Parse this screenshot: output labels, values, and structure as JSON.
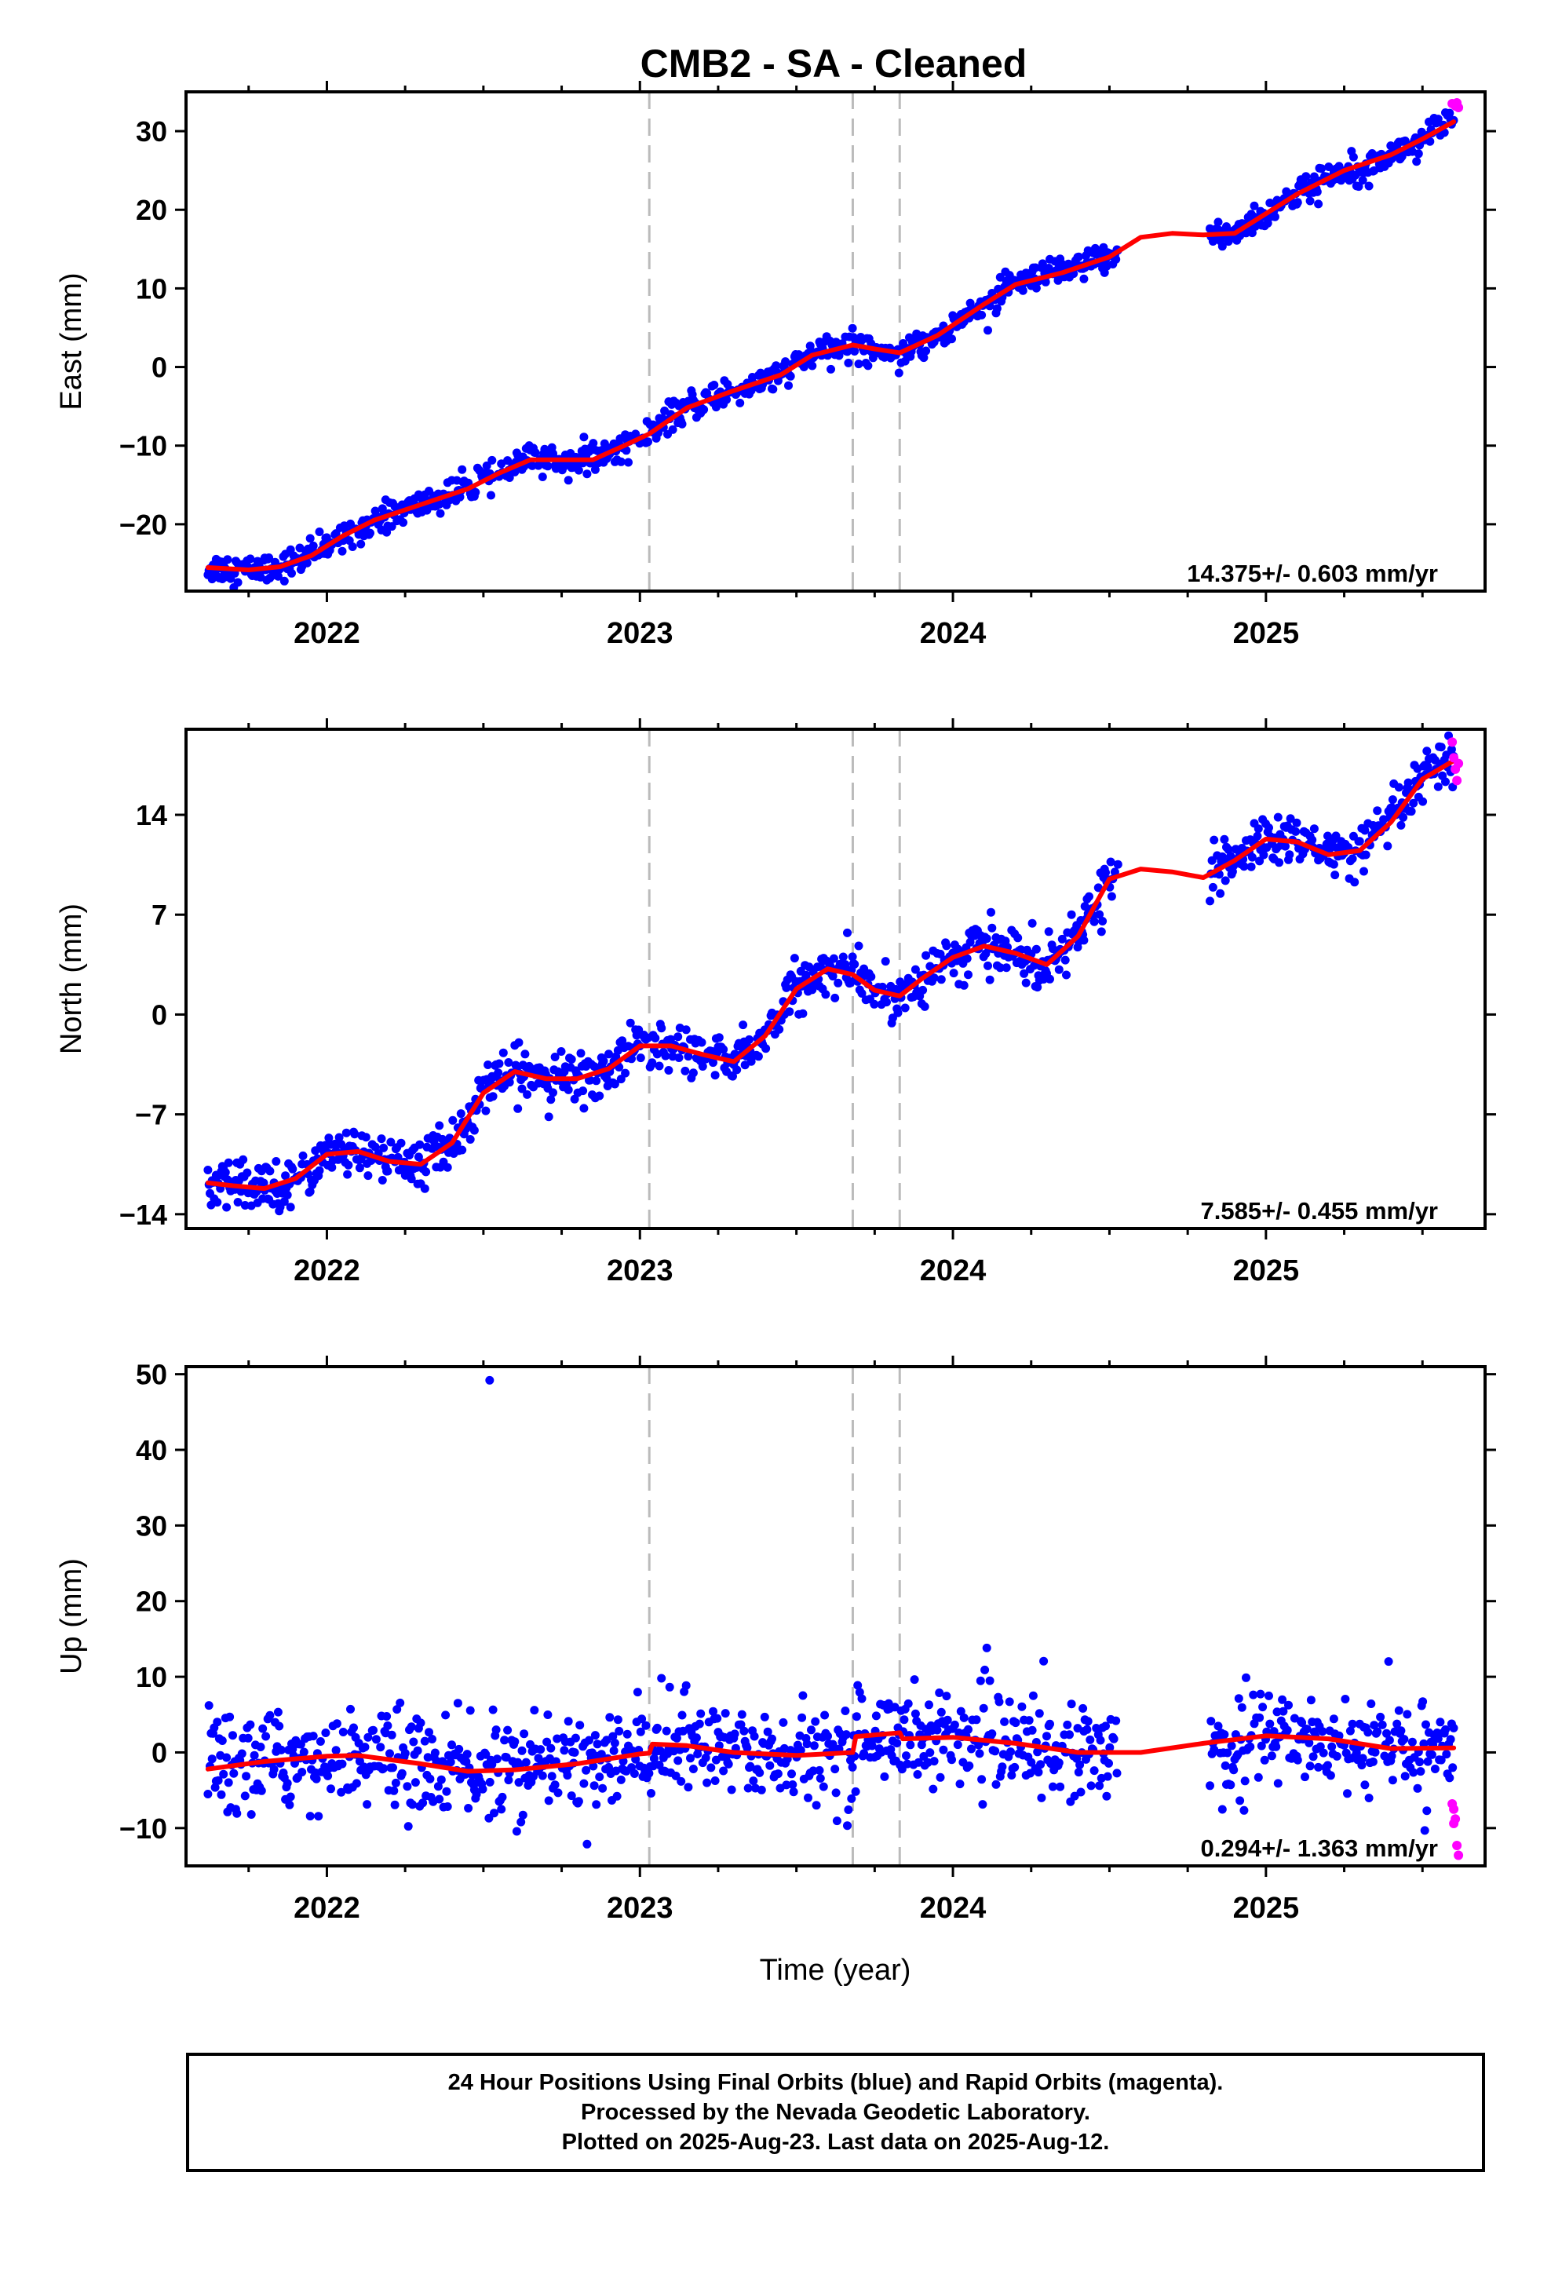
{
  "title": "CMB2  - SA - Cleaned",
  "xlabel": "Time (year)",
  "colors": {
    "final": "#0000ff",
    "rapid": "#ff00ff",
    "model": "#ff0000",
    "offset": "#bbbbbb"
  },
  "footer": {
    "line1": "24 Hour Positions Using Final Orbits (blue) and Rapid Orbits (magenta).",
    "line2": "Processed by the Nevada Geodetic Laboratory.",
    "line3": "Plotted on 2025-Aug-23. Last data on 2025-Aug-12."
  },
  "chart_data": [
    {
      "type": "scatter",
      "component": "East",
      "ylabel": "East (mm)",
      "xlim": [
        2021.55,
        2025.7
      ],
      "ylim": [
        -28.5,
        35
      ],
      "xticks": [
        2022,
        2023,
        2024,
        2025
      ],
      "yticks": [
        30,
        20,
        10,
        0,
        -10,
        -20
      ],
      "ytick_labels": [
        "30",
        "20",
        "10",
        "0",
        "−10",
        "−20"
      ],
      "rate_label": "14.375+/- 0.603 mm/yr",
      "offset_lines": [
        2023.03,
        2023.68,
        2023.83
      ],
      "data_gap": [
        2024.53,
        2024.82
      ],
      "model": [
        [
          2021.62,
          -25.5
        ],
        [
          2021.75,
          -25.8
        ],
        [
          2021.85,
          -25.4
        ],
        [
          2021.95,
          -24
        ],
        [
          2022.05,
          -21.5
        ],
        [
          2022.15,
          -19.5
        ],
        [
          2022.3,
          -17.5
        ],
        [
          2022.45,
          -15.5
        ],
        [
          2022.55,
          -13.5
        ],
        [
          2022.65,
          -11.8
        ],
        [
          2022.75,
          -11.8
        ],
        [
          2022.85,
          -11.8
        ],
        [
          2022.95,
          -10
        ],
        [
          2023.03,
          -8.5
        ],
        [
          2023.15,
          -5.2
        ],
        [
          2023.3,
          -3
        ],
        [
          2023.45,
          -1
        ],
        [
          2023.55,
          1.5
        ],
        [
          2023.65,
          2.5
        ],
        [
          2023.68,
          2.8
        ],
        [
          2023.75,
          2.3
        ],
        [
          2023.83,
          1.8
        ],
        [
          2023.95,
          4
        ],
        [
          2024.1,
          8
        ],
        [
          2024.2,
          10.5
        ],
        [
          2024.35,
          12
        ],
        [
          2024.5,
          14
        ],
        [
          2024.6,
          16.5
        ],
        [
          2024.7,
          17
        ],
        [
          2024.8,
          16.8
        ],
        [
          2024.9,
          17
        ],
        [
          2025.0,
          19.5
        ],
        [
          2025.1,
          22
        ],
        [
          2025.25,
          25
        ],
        [
          2025.4,
          27
        ],
        [
          2025.5,
          29
        ],
        [
          2025.6,
          31.2
        ]
      ],
      "rapid": [
        [
          2025.595,
          33.5
        ],
        [
          2025.605,
          33.2
        ],
        [
          2025.61,
          33.6
        ],
        [
          2025.615,
          33.0
        ]
      ]
    },
    {
      "type": "scatter",
      "component": "North",
      "ylabel": "North (mm)",
      "xlim": [
        2021.55,
        2025.7
      ],
      "ylim": [
        -15,
        20
      ],
      "xticks": [
        2022,
        2023,
        2024,
        2025
      ],
      "yticks": [
        14,
        7,
        0,
        -7,
        -14
      ],
      "ytick_labels": [
        "14",
        "7",
        "0",
        "−7",
        "−14"
      ],
      "rate_label": "7.585+/- 0.455 mm/yr",
      "offset_lines": [
        2023.03,
        2023.68,
        2023.83
      ],
      "data_gap": [
        2024.53,
        2024.82
      ],
      "model": [
        [
          2021.62,
          -11.8
        ],
        [
          2021.7,
          -12
        ],
        [
          2021.8,
          -12.2
        ],
        [
          2021.9,
          -11.5
        ],
        [
          2022.0,
          -9.8
        ],
        [
          2022.1,
          -9.6
        ],
        [
          2022.2,
          -10.3
        ],
        [
          2022.3,
          -10.5
        ],
        [
          2022.4,
          -9
        ],
        [
          2022.5,
          -5.5
        ],
        [
          2022.6,
          -4
        ],
        [
          2022.7,
          -4.5
        ],
        [
          2022.8,
          -4.5
        ],
        [
          2022.9,
          -3.8
        ],
        [
          2023.0,
          -2.2
        ],
        [
          2023.1,
          -2.2
        ],
        [
          2023.2,
          -2.8
        ],
        [
          2023.3,
          -3.3
        ],
        [
          2023.4,
          -1.5
        ],
        [
          2023.5,
          1.8
        ],
        [
          2023.6,
          3.2
        ],
        [
          2023.68,
          2.8
        ],
        [
          2023.75,
          1.7
        ],
        [
          2023.83,
          1.3
        ],
        [
          2023.9,
          2.5
        ],
        [
          2024.0,
          4
        ],
        [
          2024.1,
          4.8
        ],
        [
          2024.2,
          4.3
        ],
        [
          2024.3,
          3.5
        ],
        [
          2024.4,
          5.5
        ],
        [
          2024.5,
          9.5
        ],
        [
          2024.6,
          10.2
        ],
        [
          2024.7,
          10
        ],
        [
          2024.8,
          9.6
        ],
        [
          2024.9,
          10.8
        ],
        [
          2025.0,
          12.3
        ],
        [
          2025.1,
          12.1
        ],
        [
          2025.2,
          11.2
        ],
        [
          2025.3,
          11.5
        ],
        [
          2025.4,
          13.5
        ],
        [
          2025.5,
          16.5
        ],
        [
          2025.6,
          17.8
        ]
      ],
      "rapid": [
        [
          2025.595,
          19.1
        ],
        [
          2025.6,
          18.0
        ],
        [
          2025.605,
          17.2
        ],
        [
          2025.61,
          16.4
        ],
        [
          2025.615,
          17.6
        ]
      ]
    },
    {
      "type": "scatter",
      "component": "Up",
      "ylabel": "Up (mm)",
      "xlim": [
        2021.55,
        2025.7
      ],
      "ylim": [
        -15,
        51
      ],
      "xticks": [
        2022,
        2023,
        2024,
        2025
      ],
      "yticks": [
        50,
        40,
        30,
        20,
        10,
        0,
        -10
      ],
      "ytick_labels": [
        "50",
        "40",
        "30",
        "20",
        "10",
        "0",
        "−10"
      ],
      "rate_label": "0.294+/- 1.363 mm/yr",
      "offset_lines": [
        2023.03,
        2023.68,
        2023.83
      ],
      "data_gap": [
        2024.53,
        2024.82
      ],
      "outliers": [
        [
          2022.52,
          49.2
        ]
      ],
      "model": [
        [
          2021.62,
          -2.2
        ],
        [
          2021.8,
          -1.2
        ],
        [
          2022.0,
          -0.5
        ],
        [
          2022.1,
          -0.4
        ],
        [
          2022.3,
          -1.5
        ],
        [
          2022.45,
          -2.5
        ],
        [
          2022.6,
          -2.3
        ],
        [
          2022.8,
          -1.5
        ],
        [
          2023.0,
          -0.2
        ],
        [
          2023.03,
          -0.1
        ],
        [
          2023.04,
          1.1
        ],
        [
          2023.15,
          0.9
        ],
        [
          2023.3,
          0
        ],
        [
          2023.5,
          -0.4
        ],
        [
          2023.68,
          0
        ],
        [
          2023.69,
          2.1
        ],
        [
          2023.83,
          2.6
        ],
        [
          2023.84,
          1.8
        ],
        [
          2024.0,
          2
        ],
        [
          2024.2,
          1.2
        ],
        [
          2024.4,
          0
        ],
        [
          2024.6,
          0
        ],
        [
          2024.8,
          1.2
        ],
        [
          2025.0,
          2.2
        ],
        [
          2025.2,
          1.8
        ],
        [
          2025.4,
          0.5
        ],
        [
          2025.6,
          0.6
        ]
      ],
      "rapid": [
        [
          2025.595,
          -6.8
        ],
        [
          2025.6,
          -7.5
        ],
        [
          2025.605,
          -8.8
        ],
        [
          2025.61,
          -12.3
        ],
        [
          2025.615,
          -13.6
        ],
        [
          2025.6,
          -9.4
        ]
      ]
    }
  ]
}
